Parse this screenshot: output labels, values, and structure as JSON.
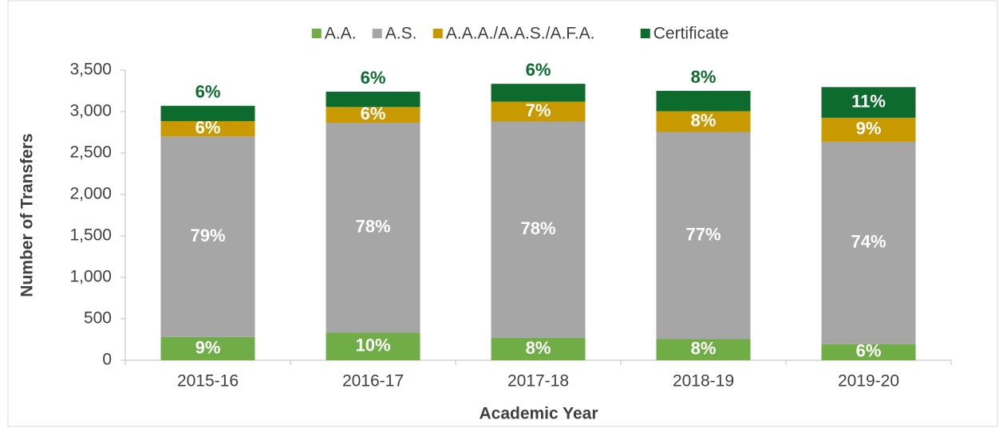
{
  "chart_data": {
    "type": "stacked_bar",
    "categories": [
      "2015-16",
      "2016-17",
      "2017-18",
      "2018-19",
      "2019-20"
    ],
    "series": [
      {
        "name": "A.A.",
        "color": "#70ad47",
        "values": [
          280,
          335,
          270,
          255,
          195
        ],
        "value_labels": [
          "9%",
          "10%",
          "8%",
          "8%",
          "6%"
        ]
      },
      {
        "name": "A.S.",
        "color": "#a6a6a6",
        "values": [
          2420,
          2530,
          2610,
          2500,
          2440
        ],
        "value_labels": [
          "79%",
          "78%",
          "78%",
          "77%",
          "74%"
        ]
      },
      {
        "name": "A.A.A./A.A.S./A.F.A.",
        "color": "#c99a00",
        "values": [
          185,
          190,
          240,
          250,
          290
        ],
        "value_labels": [
          "6%",
          "6%",
          "7%",
          "8%",
          "9%"
        ]
      },
      {
        "name": "Certificate",
        "color": "#0d6b2e",
        "values": [
          185,
          185,
          215,
          245,
          370
        ],
        "value_labels": [
          "6%",
          "6%",
          "6%",
          "8%",
          "11%"
        ]
      }
    ],
    "ylim": [
      0,
      3500
    ],
    "yticks": [
      0,
      500,
      {
        "value": 1000,
        "label": "1,000"
      },
      {
        "value": 1500,
        "label": "1,500"
      },
      {
        "value": 2000,
        "label": "2,000"
      },
      {
        "value": 2500,
        "label": "2,500"
      },
      {
        "value": 3000,
        "label": "3,000"
      },
      {
        "value": 3500,
        "label": "3,500"
      }
    ],
    "y_label": "Number of Transfers",
    "x_label": "Academic Year",
    "legend": "top"
  }
}
